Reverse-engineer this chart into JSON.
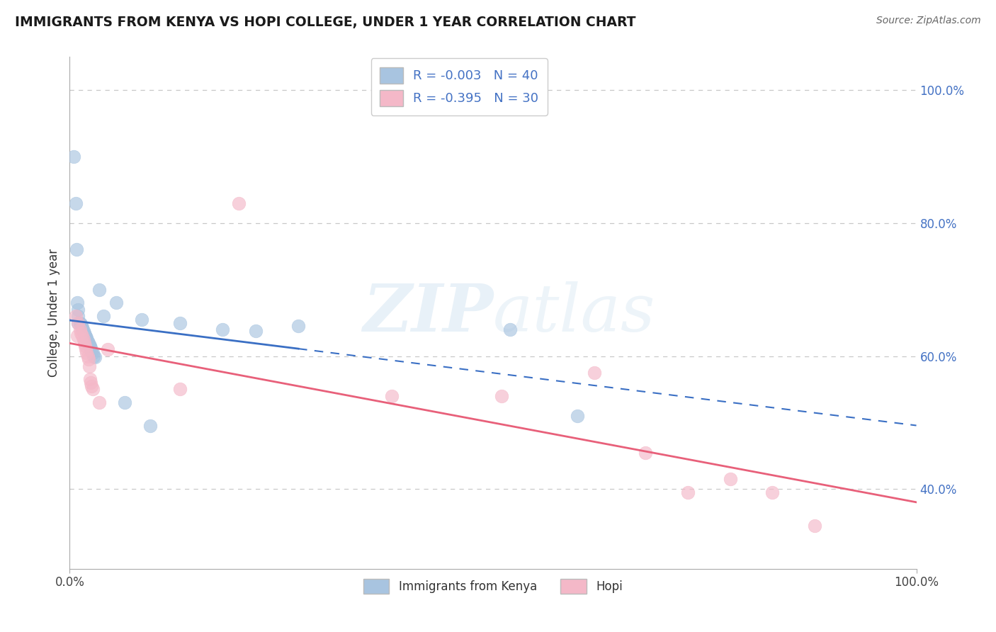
{
  "title": "IMMIGRANTS FROM KENYA VS HOPI COLLEGE, UNDER 1 YEAR CORRELATION CHART",
  "source": "Source: ZipAtlas.com",
  "ylabel": "College, Under 1 year",
  "kenya_R": "-0.003",
  "kenya_N": "40",
  "hopi_R": "-0.395",
  "hopi_N": "30",
  "kenya_color": "#a8c4e0",
  "hopi_color": "#f4b8c8",
  "kenya_line_color": "#3a6fc4",
  "hopi_line_color": "#e8607a",
  "kenya_points_x": [
    0.005,
    0.007,
    0.008,
    0.009,
    0.01,
    0.01,
    0.01,
    0.012,
    0.013,
    0.014,
    0.015,
    0.015,
    0.016,
    0.017,
    0.018,
    0.019,
    0.02,
    0.02,
    0.021,
    0.022,
    0.023,
    0.024,
    0.025,
    0.025,
    0.026,
    0.027,
    0.028,
    0.03,
    0.035,
    0.04,
    0.055,
    0.065,
    0.085,
    0.095,
    0.13,
    0.18,
    0.22,
    0.27,
    0.52,
    0.6
  ],
  "kenya_points_y": [
    0.9,
    0.83,
    0.76,
    0.68,
    0.67,
    0.66,
    0.65,
    0.65,
    0.648,
    0.645,
    0.643,
    0.64,
    0.638,
    0.635,
    0.632,
    0.629,
    0.627,
    0.625,
    0.622,
    0.62,
    0.617,
    0.615,
    0.612,
    0.61,
    0.607,
    0.605,
    0.6,
    0.598,
    0.7,
    0.66,
    0.68,
    0.53,
    0.655,
    0.495,
    0.65,
    0.64,
    0.638,
    0.645,
    0.64,
    0.51
  ],
  "hopi_points_x": [
    0.007,
    0.009,
    0.01,
    0.012,
    0.013,
    0.015,
    0.016,
    0.017,
    0.018,
    0.019,
    0.02,
    0.021,
    0.022,
    0.023,
    0.024,
    0.025,
    0.026,
    0.027,
    0.035,
    0.045,
    0.13,
    0.2,
    0.38,
    0.51,
    0.62,
    0.68,
    0.73,
    0.78,
    0.83,
    0.88
  ],
  "hopi_points_y": [
    0.66,
    0.63,
    0.65,
    0.64,
    0.635,
    0.63,
    0.625,
    0.62,
    0.615,
    0.61,
    0.605,
    0.6,
    0.595,
    0.585,
    0.565,
    0.56,
    0.555,
    0.55,
    0.53,
    0.61,
    0.55,
    0.83,
    0.54,
    0.54,
    0.575,
    0.455,
    0.395,
    0.415,
    0.395,
    0.345
  ],
  "watermark_zip": "ZIP",
  "watermark_atlas": "atlas",
  "xlim": [
    0.0,
    1.0
  ],
  "ylim": [
    0.28,
    1.05
  ],
  "ytick_vals": [
    0.4,
    0.6,
    0.8,
    1.0
  ],
  "ytick_labels": [
    "40.0%",
    "60.0%",
    "80.0%",
    "100.0%"
  ],
  "kenya_line_solid_end": 0.27,
  "hopi_line_x_start": 0.0,
  "hopi_line_x_end": 1.0
}
